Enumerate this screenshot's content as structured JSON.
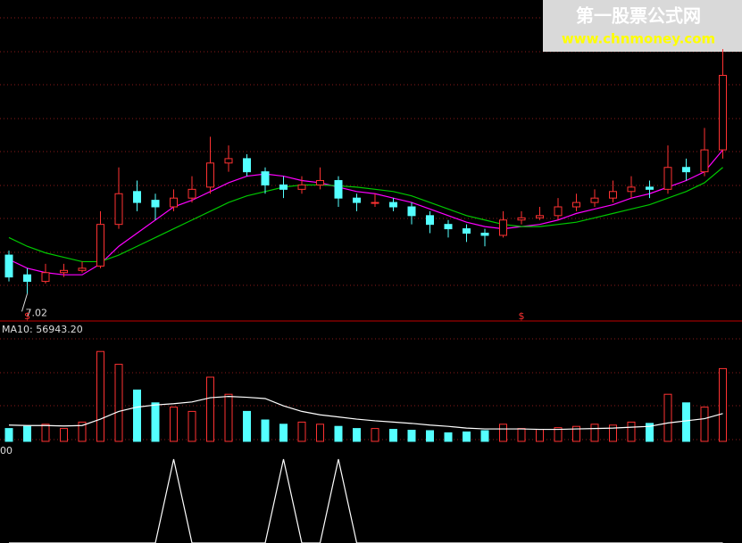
{
  "watermark": {
    "title": "第一股票公式网",
    "url": "www.chnmoney.com"
  },
  "chart_data": [
    {
      "type": "candlestick",
      "up_color": "#ff3232",
      "down_color": "#54ffff",
      "ylim": [
        6.6,
        12.6
      ],
      "open": [
        7.9,
        7.45,
        7.3,
        7.5,
        7.55,
        7.65,
        8.6,
        9.35,
        9.15,
        9.0,
        9.2,
        9.45,
        10.0,
        10.1,
        9.8,
        9.5,
        9.4,
        9.5,
        9.6,
        9.2,
        9.1,
        9.1,
        9.0,
        8.8,
        8.6,
        8.5,
        8.4,
        8.35,
        8.7,
        8.75,
        8.8,
        9.0,
        9.1,
        9.2,
        9.35,
        9.45,
        9.4,
        9.9,
        9.8,
        10.3
      ],
      "high": [
        8.0,
        7.6,
        7.7,
        7.7,
        7.75,
        8.9,
        9.9,
        9.6,
        9.3,
        9.4,
        9.7,
        10.6,
        10.4,
        10.2,
        9.9,
        9.7,
        9.7,
        9.9,
        9.7,
        9.3,
        9.3,
        9.2,
        9.1,
        8.9,
        8.7,
        8.6,
        8.5,
        8.9,
        8.9,
        9.0,
        9.2,
        9.3,
        9.4,
        9.6,
        9.7,
        9.6,
        10.4,
        10.1,
        10.8,
        12.6
      ],
      "low": [
        7.3,
        7.02,
        7.25,
        7.4,
        7.5,
        7.6,
        8.5,
        8.9,
        8.7,
        8.9,
        9.1,
        9.3,
        9.8,
        9.7,
        9.3,
        9.2,
        9.3,
        9.4,
        9.0,
        8.9,
        9.0,
        8.9,
        8.6,
        8.4,
        8.3,
        8.2,
        8.1,
        8.3,
        8.6,
        8.7,
        8.7,
        8.9,
        9.0,
        9.1,
        9.2,
        9.2,
        9.3,
        9.6,
        9.7,
        10.1
      ],
      "close": [
        7.4,
        7.3,
        7.5,
        7.55,
        7.6,
        8.6,
        9.3,
        9.1,
        9.0,
        9.2,
        9.4,
        10.0,
        10.1,
        9.8,
        9.5,
        9.4,
        9.5,
        9.6,
        9.2,
        9.1,
        9.1,
        9.0,
        8.8,
        8.6,
        8.5,
        8.4,
        8.35,
        8.7,
        8.75,
        8.8,
        9.0,
        9.1,
        9.2,
        9.35,
        9.45,
        9.4,
        9.9,
        9.8,
        10.3,
        12.0
      ],
      "series": [
        {
          "color": "#ff00ff",
          "values": [
            7.8,
            7.6,
            7.5,
            7.45,
            7.45,
            7.7,
            8.1,
            8.4,
            8.7,
            9.0,
            9.15,
            9.35,
            9.55,
            9.7,
            9.75,
            9.7,
            9.6,
            9.55,
            9.45,
            9.35,
            9.3,
            9.2,
            9.1,
            8.95,
            8.8,
            8.65,
            8.55,
            8.5,
            8.55,
            8.6,
            8.7,
            8.85,
            8.95,
            9.05,
            9.2,
            9.3,
            9.45,
            9.6,
            9.8,
            10.3
          ]
        },
        {
          "color": "#00c800",
          "values": [
            8.3,
            8.1,
            7.95,
            7.85,
            7.75,
            7.75,
            7.9,
            8.1,
            8.3,
            8.5,
            8.7,
            8.9,
            9.1,
            9.25,
            9.35,
            9.45,
            9.5,
            9.5,
            9.48,
            9.45,
            9.4,
            9.35,
            9.25,
            9.1,
            8.95,
            8.8,
            8.7,
            8.6,
            8.55,
            8.55,
            8.6,
            8.65,
            8.75,
            8.85,
            8.95,
            9.05,
            9.2,
            9.35,
            9.55,
            9.9
          ]
        }
      ],
      "markers": [
        {
          "index": 1,
          "label": "$"
        },
        {
          "index": 28,
          "label": "$"
        }
      ]
    },
    {
      "type": "bar",
      "label": "MA10: 56943.20",
      "ylim": [
        0,
        250000
      ],
      "values": [
        30000,
        35000,
        40000,
        30000,
        45000,
        210000,
        180000,
        120000,
        90000,
        80000,
        70000,
        150000,
        110000,
        70000,
        50000,
        40000,
        45000,
        40000,
        35000,
        30000,
        30000,
        28000,
        26000,
        25000,
        20000,
        22000,
        25000,
        40000,
        30000,
        28000,
        32000,
        35000,
        40000,
        38000,
        45000,
        42000,
        110000,
        90000,
        80000,
        170000
      ],
      "series": [
        {
          "color": "#ffffff",
          "values": [
            38000,
            37000,
            37000,
            36000,
            37000,
            52000,
            70000,
            80000,
            85000,
            88000,
            92000,
            102000,
            105000,
            103000,
            100000,
            83000,
            70000,
            62000,
            57000,
            52000,
            48000,
            45000,
            42000,
            38000,
            35000,
            31000,
            29000,
            29000,
            29000,
            28000,
            28000,
            29000,
            30000,
            31000,
            33000,
            35000,
            43000,
            48000,
            53000,
            65000
          ]
        }
      ]
    },
    {
      "type": "line",
      "label": "00",
      "ylim": [
        0,
        1
      ],
      "color": "#ffffff",
      "values": [
        0,
        0,
        0,
        0,
        0,
        0,
        0,
        0,
        0,
        1,
        0,
        0,
        0,
        0,
        0,
        1,
        0,
        0,
        1,
        0,
        0,
        0,
        0,
        0,
        0,
        0,
        0,
        0,
        0,
        0,
        0,
        0,
        0,
        0,
        0,
        0,
        0,
        0,
        0,
        0
      ]
    }
  ]
}
